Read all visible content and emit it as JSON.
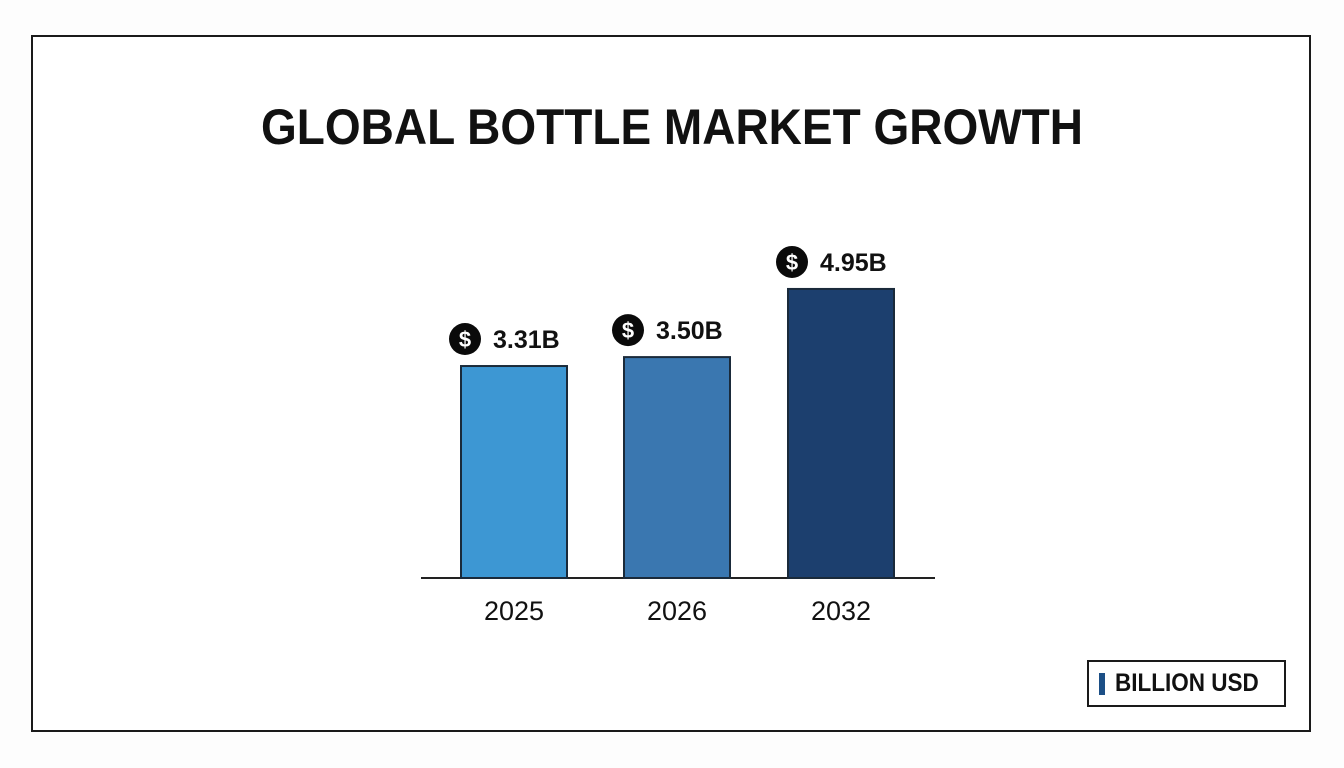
{
  "chart_data": {
    "type": "bar",
    "title": "GLOBAL BOTTLE MARKET GROWTH",
    "categories": [
      "2025",
      "2026",
      "2032"
    ],
    "values": [
      3.31,
      3.5,
      4.95
    ],
    "data_labels": [
      "3.31B",
      "3.50B",
      "4.95B"
    ],
    "colors": [
      "#3d97d3",
      "#3a77b0",
      "#1c3f6e"
    ],
    "label_icon": "dollar-circle-icon",
    "unit": "Billion USD",
    "xlabel": "",
    "ylabel": "",
    "grid": false,
    "legend": {
      "label": "BILLION USD",
      "color": "#1c4f86",
      "position": "bottom-right"
    }
  }
}
